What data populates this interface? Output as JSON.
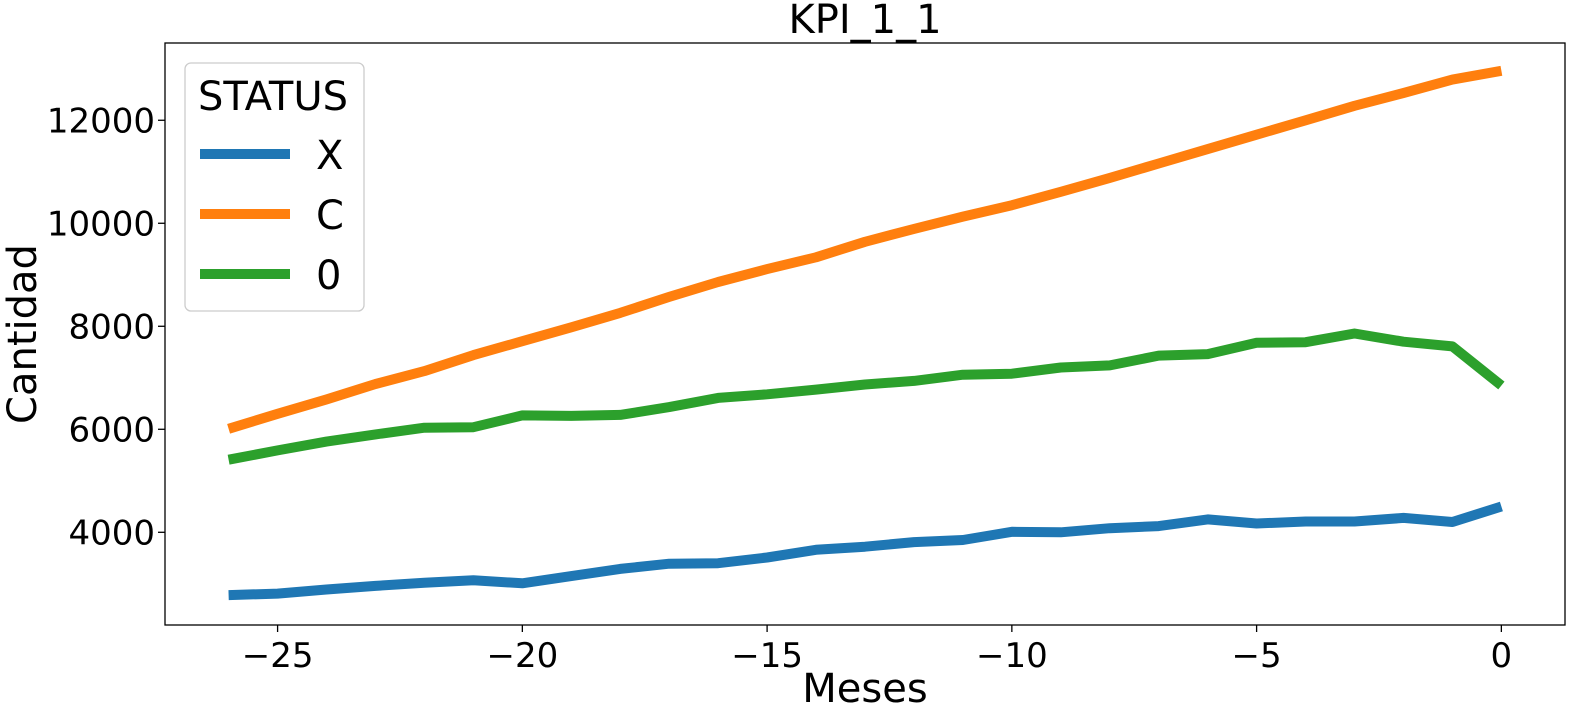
{
  "chart_data": {
    "type": "line",
    "title": "KPI_1_1",
    "xlabel": "Meses",
    "ylabel": "Cantidad",
    "xlim": [
      -27.3,
      1.3
    ],
    "ylim": [
      2200,
      13500
    ],
    "xticks": [
      -25,
      -20,
      -15,
      -10,
      -5,
      0
    ],
    "xtick_labels": [
      "−25",
      "−20",
      "−15",
      "−10",
      "−5",
      "0"
    ],
    "yticks": [
      4000,
      6000,
      8000,
      10000,
      12000
    ],
    "ytick_labels": [
      "4000",
      "6000",
      "8000",
      "10000",
      "12000"
    ],
    "grid": false,
    "legend": {
      "title": "STATUS",
      "position": "top-left"
    },
    "x": [
      -26,
      -25,
      -24,
      -23,
      -22,
      -21,
      -20,
      -19,
      -18,
      -17,
      -16,
      -15,
      -14,
      -13,
      -12,
      -11,
      -10,
      -9,
      -8,
      -7,
      -6,
      -5,
      -4,
      -3,
      -2,
      -1,
      0
    ],
    "series": [
      {
        "name": "X",
        "color": "#1f77b4",
        "values": [
          2780,
          2810,
          2890,
          2960,
          3020,
          3070,
          3010,
          3150,
          3290,
          3390,
          3400,
          3510,
          3660,
          3720,
          3810,
          3850,
          4010,
          4000,
          4080,
          4120,
          4250,
          4170,
          4210,
          4210,
          4280,
          4200,
          4500
        ]
      },
      {
        "name": "C",
        "color": "#ff7f0e",
        "values": [
          6010,
          6300,
          6580,
          6880,
          7130,
          7440,
          7710,
          7980,
          8260,
          8570,
          8860,
          9110,
          9340,
          9640,
          9890,
          10130,
          10350,
          10610,
          10880,
          11160,
          11440,
          11720,
          12000,
          12280,
          12530,
          12790,
          12960
        ]
      },
      {
        "name": "0",
        "color": "#2ca02c",
        "values": [
          5410,
          5590,
          5760,
          5900,
          6030,
          6040,
          6270,
          6260,
          6280,
          6430,
          6610,
          6680,
          6770,
          6870,
          6940,
          7060,
          7080,
          7200,
          7240,
          7430,
          7460,
          7680,
          7690,
          7860,
          7700,
          7610,
          6850
        ]
      }
    ]
  }
}
